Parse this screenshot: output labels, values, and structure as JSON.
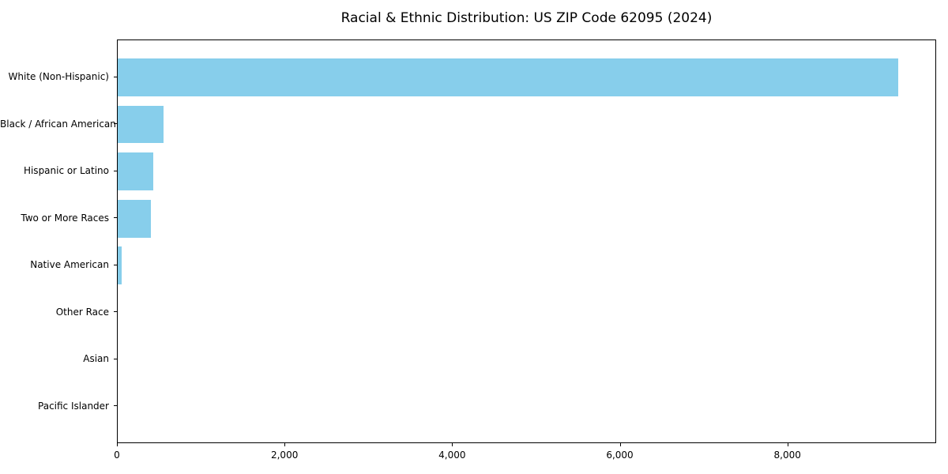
{
  "title": "Racial & Ethnic Distribution: US ZIP Code 62095 (2024)",
  "chart_data": {
    "type": "bar",
    "orientation": "horizontal",
    "title": "Racial & Ethnic Distribution: US ZIP Code 62095 (2024)",
    "xlabel": "",
    "ylabel": "",
    "categories": [
      "White (Non-Hispanic)",
      "Black / African American",
      "Hispanic or Latino",
      "Two or More Races",
      "Native American",
      "Other Race",
      "Asian",
      "Pacific Islander"
    ],
    "values": [
      9310,
      550,
      420,
      395,
      50,
      0,
      0,
      0
    ],
    "xlim": [
      0,
      9775
    ],
    "x_ticks": [
      0,
      2000,
      4000,
      6000,
      8000
    ],
    "x_tick_labels": [
      "0",
      "2,000",
      "4,000",
      "6,000",
      "8,000"
    ],
    "bar_color": "#87CEEB",
    "grid": false,
    "legend": null
  }
}
